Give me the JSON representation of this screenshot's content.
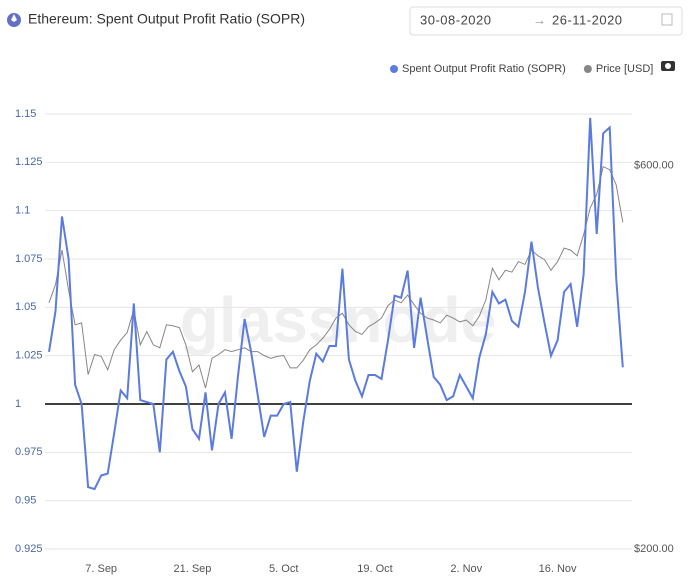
{
  "header": {
    "title": "Ethereum: Spent Output Profit Ratio (SOPR)",
    "date_from": "30-08-2020",
    "arrow": "→",
    "date_to": "26-11-2020"
  },
  "chart_data": {
    "type": "line",
    "watermark": "glassnode",
    "x": [
      "2020-08-30",
      "2020-08-31",
      "2020-09-01",
      "2020-09-02",
      "2020-09-03",
      "2020-09-04",
      "2020-09-05",
      "2020-09-06",
      "2020-09-07",
      "2020-09-08",
      "2020-09-09",
      "2020-09-10",
      "2020-09-11",
      "2020-09-12",
      "2020-09-13",
      "2020-09-14",
      "2020-09-15",
      "2020-09-16",
      "2020-09-17",
      "2020-09-18",
      "2020-09-19",
      "2020-09-20",
      "2020-09-21",
      "2020-09-22",
      "2020-09-23",
      "2020-09-24",
      "2020-09-25",
      "2020-09-26",
      "2020-09-27",
      "2020-09-28",
      "2020-09-29",
      "2020-09-30",
      "2020-10-01",
      "2020-10-02",
      "2020-10-03",
      "2020-10-04",
      "2020-10-05",
      "2020-10-06",
      "2020-10-07",
      "2020-10-08",
      "2020-10-09",
      "2020-10-10",
      "2020-10-11",
      "2020-10-12",
      "2020-10-13",
      "2020-10-14",
      "2020-10-15",
      "2020-10-16",
      "2020-10-17",
      "2020-10-18",
      "2020-10-19",
      "2020-10-20",
      "2020-10-21",
      "2020-10-22",
      "2020-10-23",
      "2020-10-24",
      "2020-10-25",
      "2020-10-26",
      "2020-10-27",
      "2020-10-28",
      "2020-10-29",
      "2020-10-30",
      "2020-10-31",
      "2020-11-01",
      "2020-11-02",
      "2020-11-03",
      "2020-11-04",
      "2020-11-05",
      "2020-11-06",
      "2020-11-07",
      "2020-11-08",
      "2020-11-09",
      "2020-11-10",
      "2020-11-11",
      "2020-11-12",
      "2020-11-13",
      "2020-11-14",
      "2020-11-15",
      "2020-11-16",
      "2020-11-17",
      "2020-11-18",
      "2020-11-19",
      "2020-11-20",
      "2020-11-21",
      "2020-11-22",
      "2020-11-23",
      "2020-11-24",
      "2020-11-25",
      "2020-11-26"
    ],
    "xticks": [
      {
        "value": "2020-09-07",
        "label": "7. Sep"
      },
      {
        "value": "2020-09-21",
        "label": "21. Sep"
      },
      {
        "value": "2020-10-05",
        "label": "5. Oct"
      },
      {
        "value": "2020-10-19",
        "label": "19. Oct"
      },
      {
        "value": "2020-11-02",
        "label": "2. Nov"
      },
      {
        "value": "2020-11-16",
        "label": "16. Nov"
      }
    ],
    "series": [
      {
        "name": "Spent Output Profit Ratio (SOPR)",
        "color": "#5b7be0",
        "values": [
          1.027,
          1.048,
          1.097,
          1.075,
          1.01,
          1.0,
          0.957,
          0.956,
          0.963,
          0.964,
          0.985,
          1.007,
          1.003,
          1.052,
          1.002,
          1.001,
          1.0,
          0.975,
          1.023,
          1.027,
          1.017,
          1.009,
          0.987,
          0.982,
          1.006,
          0.976,
          1.0,
          1.006,
          0.982,
          1.015,
          1.044,
          1.027,
          1.005,
          0.983,
          0.994,
          0.994,
          1.0,
          1.001,
          0.965,
          0.991,
          1.012,
          1.026,
          1.022,
          1.03,
          1.03,
          1.07,
          1.023,
          1.012,
          1.004,
          1.015,
          1.015,
          1.013,
          1.033,
          1.056,
          1.055,
          1.069,
          1.029,
          1.055,
          1.034,
          1.014,
          1.01,
          1.002,
          1.004,
          1.015,
          1.009,
          1.003,
          1.024,
          1.036,
          1.058,
          1.052,
          1.054,
          1.043,
          1.04,
          1.058,
          1.084,
          1.06,
          1.042,
          1.025,
          1.033,
          1.058,
          1.062,
          1.04,
          1.067,
          1.148,
          1.088,
          1.14,
          1.143,
          1.065,
          1.019
        ]
      },
      {
        "name": "Price [USD]",
        "color": "#8a8585",
        "axis": "y2",
        "values": [
          457,
          476,
          512,
          470,
          434,
          436,
          382,
          403,
          401,
          387,
          408,
          418,
          426,
          450,
          413,
          427,
          413,
          410,
          434,
          433,
          431,
          413,
          385,
          392,
          368,
          399,
          403,
          408,
          406,
          408,
          410,
          406,
          406,
          402,
          399,
          401,
          402,
          389,
          389,
          397,
          408,
          413,
          420,
          429,
          441,
          446,
          434,
          427,
          424,
          432,
          436,
          441,
          454,
          460,
          457,
          465,
          455,
          446,
          441,
          439,
          436,
          444,
          441,
          437,
          439,
          433,
          443,
          460,
          493,
          481,
          491,
          489,
          500,
          497,
          512,
          506,
          502,
          491,
          500,
          514,
          512,
          506,
          528,
          556,
          570,
          599,
          596,
          580,
          541
        ]
      }
    ],
    "ylim": [
      0.925,
      1.15
    ],
    "yticks": [
      0.925,
      0.95,
      0.975,
      1,
      1.025,
      1.05,
      1.075,
      1.1,
      1.125,
      1.15
    ],
    "y2lim": [
      200,
      654
    ],
    "y2ticks": [
      {
        "value": 200,
        "label": "$200.00"
      },
      {
        "value": 600,
        "label": "$600.00"
      }
    ],
    "reference_line": 1,
    "grid": true,
    "legend": "top-right"
  }
}
